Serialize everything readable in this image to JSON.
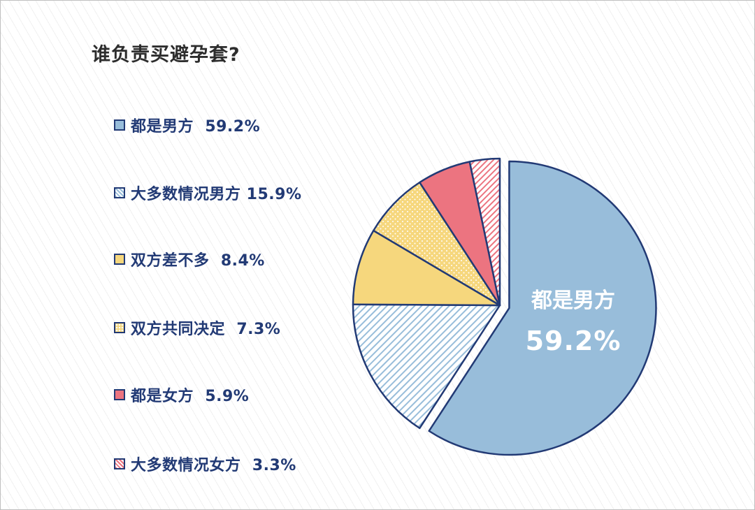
{
  "title": "谁负责买避孕套?",
  "colors": {
    "outline": "#223a75",
    "blue": "#98bdda",
    "yellow": "#f6d77d",
    "red": "#ec7480",
    "white": "#ffffff"
  },
  "chart_data": {
    "type": "pie",
    "title": "谁负责买避孕套?",
    "slices": [
      {
        "label": "都是男方",
        "value": 59.2,
        "value_label": "59.2%",
        "color": "#98bdda",
        "pattern": "solid",
        "exploded": true
      },
      {
        "label": "大多数情况男方",
        "value": 15.9,
        "value_label": "15.9%",
        "color": "#98bdda",
        "pattern": "hatch"
      },
      {
        "label": "双方差不多",
        "value": 8.4,
        "value_label": "8.4%",
        "color": "#f6d77d",
        "pattern": "solid"
      },
      {
        "label": "双方共同决定",
        "value": 7.3,
        "value_label": "7.3%",
        "color": "#f6d77d",
        "pattern": "dots"
      },
      {
        "label": "都是女方",
        "value": 5.9,
        "value_label": "5.9%",
        "color": "#ec7480",
        "pattern": "solid"
      },
      {
        "label": "大多数情况女方",
        "value": 3.3,
        "value_label": "3.3%",
        "color": "#ec7480",
        "pattern": "hatch"
      }
    ],
    "legend_placement": "left",
    "slice_label": {
      "name": "都是男方",
      "value": "59.2%"
    }
  },
  "legend": [
    {
      "text": "都是男方  59.2%"
    },
    {
      "text": "大多数情况男方 15.9%"
    },
    {
      "text": "双方差不多  8.4%"
    },
    {
      "text": "双方共同决定  7.3%"
    },
    {
      "text": "都是女方  5.9%"
    },
    {
      "text": "大多数情况女方  3.3%"
    }
  ]
}
